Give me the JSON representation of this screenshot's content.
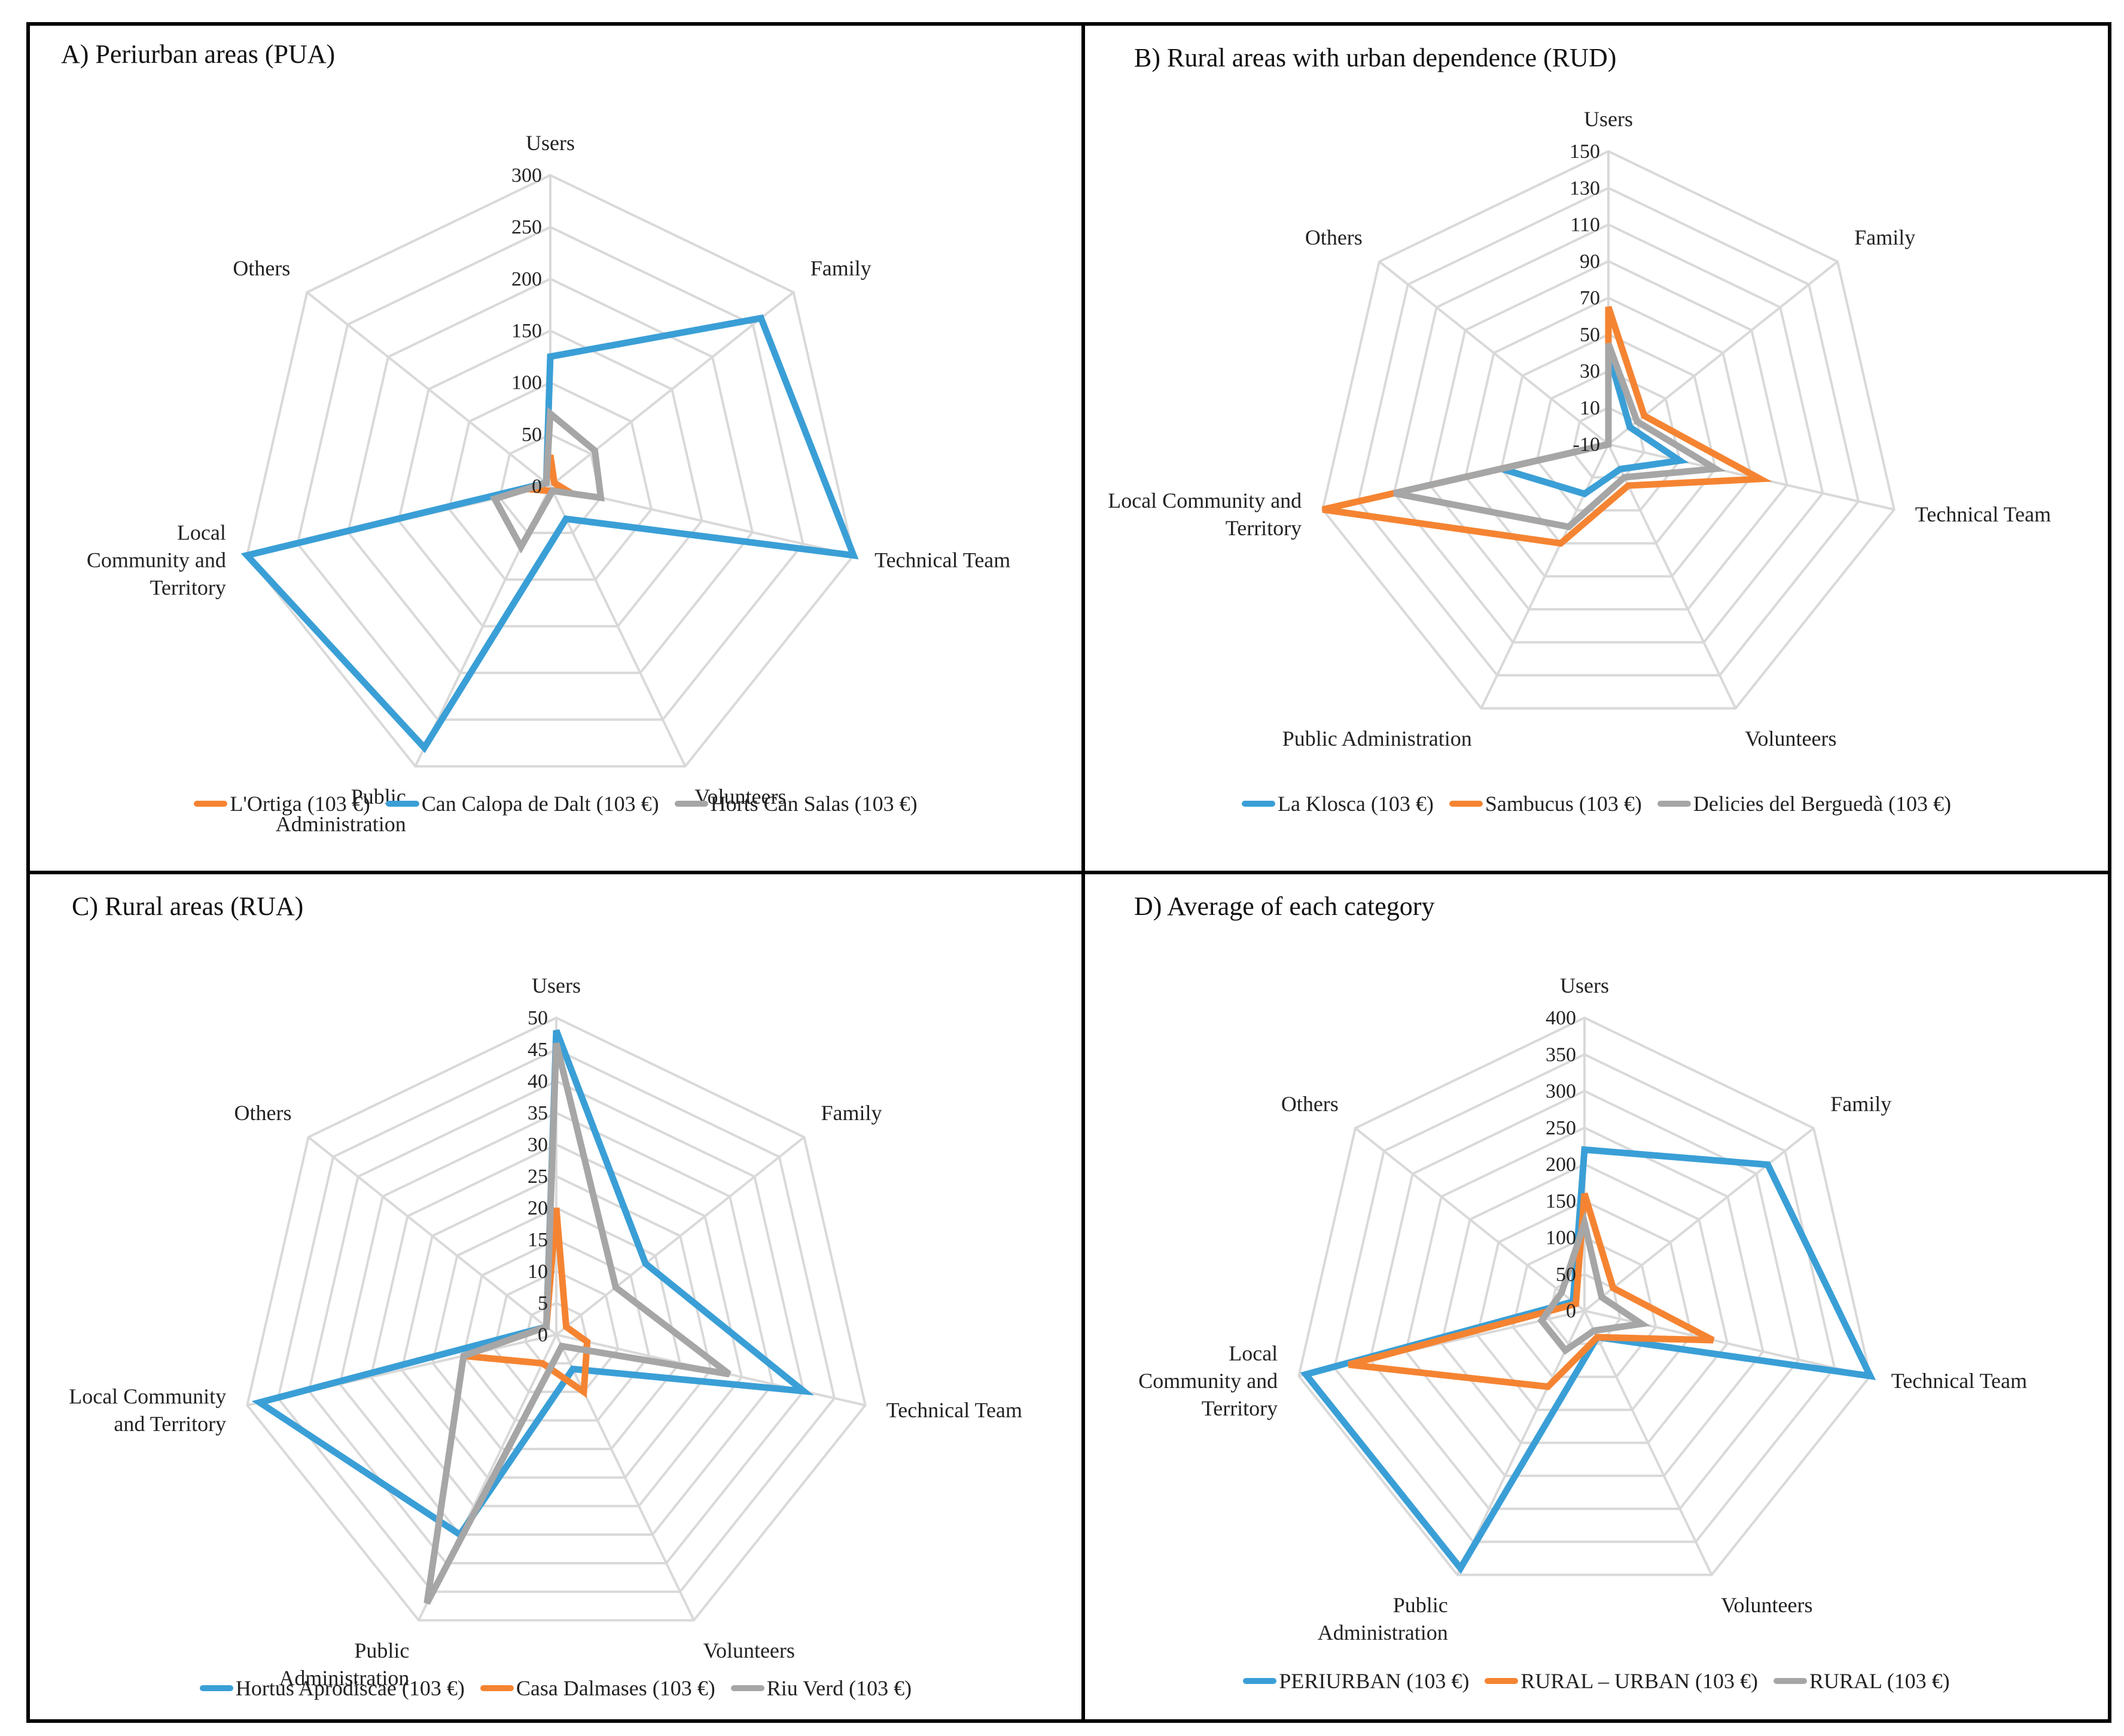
{
  "colors": {
    "blue": "#3a9fd6",
    "orange": "#f58432",
    "gray": "#a6a6a6",
    "grid": "#d9d9d9"
  },
  "chart_data": [
    {
      "type": "radar",
      "title": "A) Periurban areas (PUA)",
      "axes": [
        "Users",
        "Family",
        "Technical Team",
        "Volunteers",
        "Public Administration",
        "Local Community and Territory",
        "Others"
      ],
      "axis_label_lines": [
        [
          "Users"
        ],
        [
          "Family"
        ],
        [
          "Technical Team"
        ],
        [
          "Volunteers"
        ],
        [
          "Public",
          "Administration"
        ],
        [
          "Local",
          "Community and",
          "Territory"
        ],
        [
          "Others"
        ]
      ],
      "range": [
        0,
        300
      ],
      "ticks": [
        0,
        50,
        100,
        150,
        200,
        250,
        300
      ],
      "series": [
        {
          "name": "L'Ortiga (103 €)",
          "color": "#f58432",
          "values": [
            30,
            5,
            15,
            5,
            5,
            15,
            5
          ]
        },
        {
          "name": "Can Calopa de Dalt (103 €)",
          "color": "#3a9fd6",
          "values": [
            125,
            260,
            300,
            35,
            280,
            300,
            5
          ]
        },
        {
          "name": "Horts Can Salas (103 €)",
          "color": "#a6a6a6",
          "values": [
            70,
            55,
            50,
            5,
            65,
            55,
            5
          ]
        }
      ]
    },
    {
      "type": "radar",
      "title": "B) Rural areas with urban dependence (RUD)",
      "axes": [
        "Users",
        "Family",
        "Technical Team",
        "Volunteers",
        "Public Administration",
        "Local Community and Territory",
        "Others"
      ],
      "axis_label_lines": [
        [
          "Users"
        ],
        [
          "Family"
        ],
        [
          "Technical Team"
        ],
        [
          "Volunteers"
        ],
        [
          "Public Administration"
        ],
        [
          "Local Community and",
          "Territory"
        ],
        [
          "Others"
        ]
      ],
      "range": [
        -10,
        150
      ],
      "ticks": [
        -10,
        10,
        30,
        50,
        70,
        90,
        110,
        130,
        150
      ],
      "series": [
        {
          "name": "La Klosca (103 €)",
          "color": "#3a9fd6",
          "values": [
            40,
            5,
            30,
            5,
            20,
            50,
            -10
          ]
        },
        {
          "name": "Sambucus (103 €)",
          "color": "#f58432",
          "values": [
            65,
            15,
            75,
            15,
            50,
            150,
            -10
          ]
        },
        {
          "name": "Delicies  del Berguedà (103 €)",
          "color": "#a6a6a6",
          "values": [
            45,
            10,
            50,
            10,
            40,
            110,
            -10
          ]
        }
      ]
    },
    {
      "type": "radar",
      "title": "C) Rural areas (RUA)",
      "axes": [
        "Users",
        "Family",
        "Technical Team",
        "Volunteers",
        "Public Administration",
        "Local Community and Territory",
        "Others"
      ],
      "axis_label_lines": [
        [
          "Users"
        ],
        [
          "Family"
        ],
        [
          "Technical Team"
        ],
        [
          "Volunteers"
        ],
        [
          "Public",
          "Administration"
        ],
        [
          "Local Community",
          "and Territory"
        ],
        [
          "Others"
        ]
      ],
      "range": [
        0,
        50
      ],
      "ticks": [
        0,
        5,
        10,
        15,
        20,
        25,
        30,
        35,
        40,
        45,
        50
      ],
      "series": [
        {
          "name": "Hortus Aprodiscae (103 €)",
          "color": "#3a9fd6",
          "values": [
            48,
            18,
            40,
            6,
            35,
            48,
            2
          ]
        },
        {
          "name": "Casa Dalmases (103 €)",
          "color": "#f58432",
          "values": [
            20,
            2,
            5,
            10,
            5,
            15,
            2
          ]
        },
        {
          "name": "Riu Verd (103 €)",
          "color": "#a6a6a6",
          "values": [
            46,
            12,
            28,
            2,
            47,
            15,
            2
          ]
        }
      ]
    },
    {
      "type": "radar",
      "title": "D) Average of each category",
      "axes": [
        "Users",
        "Family",
        "Technical Team",
        "Volunteers",
        "Public Administration",
        "Local Community and Territory",
        "Others"
      ],
      "axis_label_lines": [
        [
          "Users"
        ],
        [
          "Family"
        ],
        [
          "Technical Team"
        ],
        [
          "Volunteers"
        ],
        [
          "Public",
          "Administration"
        ],
        [
          "Local",
          "Community and",
          "Territory"
        ],
        [
          "Others"
        ]
      ],
      "range": [
        0,
        400
      ],
      "ticks": [
        0,
        50,
        100,
        150,
        200,
        250,
        300,
        350,
        400
      ],
      "series": [
        {
          "name": "PERIURBAN (103 €)",
          "color": "#3a9fd6",
          "values": [
            220,
            320,
            400,
            40,
            390,
            390,
            20
          ]
        },
        {
          "name": "RURAL – URBAN (103 €)",
          "color": "#f58432",
          "values": [
            160,
            50,
            180,
            40,
            115,
            330,
            15
          ]
        },
        {
          "name": "RURAL (103 €)",
          "color": "#a6a6a6",
          "values": [
            120,
            30,
            80,
            30,
            60,
            60,
            40
          ]
        }
      ]
    }
  ]
}
